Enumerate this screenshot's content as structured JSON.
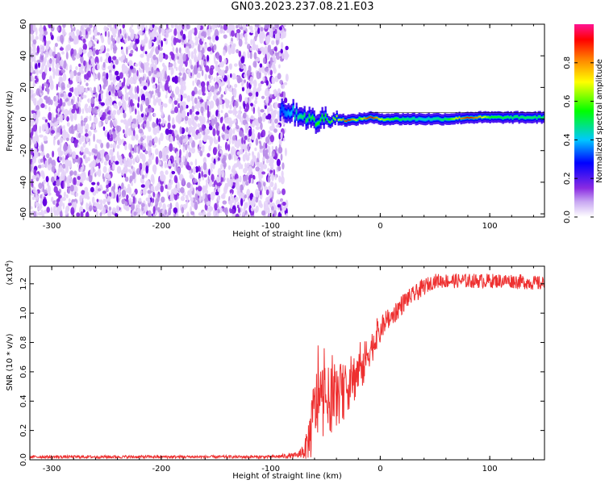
{
  "title": "GN03.2023.237.08.21.E03",
  "chart_data": [
    {
      "type": "heatmap",
      "title": "GN03.2023.237.08.21.E03",
      "xlabel": "Height of straight line (km)",
      "ylabel": "Frequency (Hz)",
      "xlim": [
        -320,
        150
      ],
      "ylim": [
        -62,
        60
      ],
      "x_ticks": [
        -300,
        -200,
        -100,
        0,
        100
      ],
      "x_tick_labels": [
        "-300",
        "-200",
        "-100",
        "0",
        "100"
      ],
      "y_ticks": [
        -60,
        -40,
        -20,
        0,
        20,
        40,
        60
      ],
      "y_tick_labels": [
        "-60",
        "-40",
        "-20",
        "0",
        "20",
        "40",
        "60"
      ],
      "colorbar": {
        "label": "Normalized spectral amplitude",
        "range": [
          0,
          1
        ],
        "ticks": [
          0.0,
          0.2,
          0.4,
          0.6,
          0.8
        ],
        "tick_labels": [
          "0.0",
          "0.2",
          "0.4",
          "0.6",
          "0.8"
        ],
        "colormap": [
          "#ffffff",
          "#8a2be2",
          "#0000ff",
          "#00c0ff",
          "#00ff00",
          "#ffff00",
          "#ff8000",
          "#ff0000",
          "#ff1493"
        ]
      },
      "noise_region_x": [
        -320,
        -85
      ],
      "signal_track": {
        "x": [
          -90,
          -80,
          -70,
          -60,
          -50,
          -40,
          -30,
          -20,
          -10,
          0,
          20,
          40,
          60,
          80,
          100,
          120,
          150
        ],
        "freq": [
          6,
          4,
          2,
          -2,
          1,
          0,
          -1,
          0,
          1,
          0,
          0,
          0,
          0,
          1,
          1,
          1,
          1
        ],
        "amplitude": [
          0.3,
          0.4,
          0.45,
          0.5,
          0.5,
          0.6,
          0.9,
          0.5,
          0.95,
          0.6,
          0.45,
          0.4,
          0.45,
          0.9,
          0.5,
          0.45,
          0.45
        ]
      }
    },
    {
      "type": "line",
      "xlabel": "Height of straight line (km)",
      "ylabel": "SNR (10 * v/v)",
      "y_multiplier": "(x10^4)",
      "xlim": [
        -320,
        150
      ],
      "ylim": [
        0,
        1.32
      ],
      "x_ticks": [
        -300,
        -200,
        -100,
        0,
        100
      ],
      "x_tick_labels": [
        "-300",
        "-200",
        "-100",
        "0",
        "100"
      ],
      "y_ticks": [
        0.0,
        0.2,
        0.4,
        0.6,
        0.8,
        1.0,
        1.2
      ],
      "y_tick_labels": [
        "0.0",
        "0.2",
        "0.4",
        "0.6",
        "0.8",
        "1.0",
        "1.2"
      ],
      "color": "#ee3030",
      "x": [
        -320,
        -100,
        -75,
        -68,
        -63,
        -60,
        -55,
        -50,
        -45,
        -40,
        -35,
        -30,
        -25,
        -20,
        -15,
        -10,
        -5,
        0,
        5,
        10,
        15,
        20,
        25,
        30,
        35,
        40,
        45,
        50,
        55,
        60,
        80,
        100,
        120,
        150
      ],
      "y": [
        0.02,
        0.02,
        0.03,
        0.08,
        0.2,
        0.35,
        0.42,
        0.4,
        0.4,
        0.45,
        0.45,
        0.5,
        0.55,
        0.6,
        0.65,
        0.75,
        0.8,
        0.88,
        0.93,
        0.97,
        1.02,
        1.06,
        1.1,
        1.12,
        1.15,
        1.18,
        1.2,
        1.22,
        1.22,
        1.22,
        1.22,
        1.22,
        1.22,
        1.2
      ],
      "spread": [
        0.01,
        0.01,
        0.02,
        0.08,
        0.2,
        0.25,
        0.25,
        0.25,
        0.22,
        0.22,
        0.2,
        0.18,
        0.18,
        0.16,
        0.15,
        0.12,
        0.1,
        0.1,
        0.08,
        0.08,
        0.07,
        0.07,
        0.06,
        0.06,
        0.06,
        0.06,
        0.05,
        0.05,
        0.05,
        0.05,
        0.05,
        0.05,
        0.05,
        0.05
      ]
    }
  ]
}
